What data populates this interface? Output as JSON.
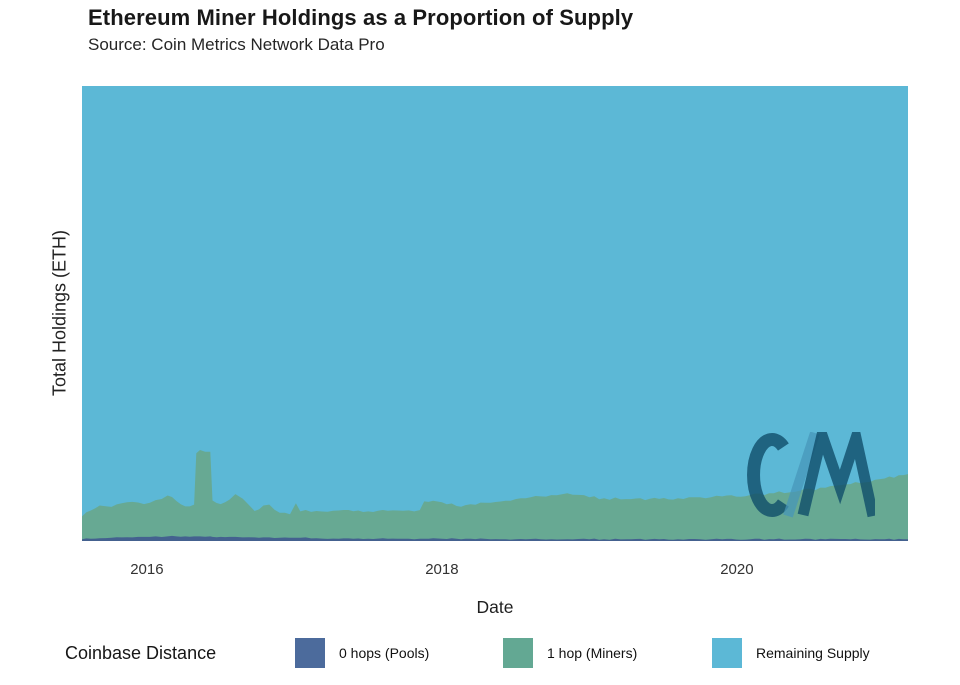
{
  "header": {
    "title": "Ethereum Miner Holdings as a Proportion of Supply",
    "source": "Source: Coin Metrics Network Data Pro"
  },
  "axes": {
    "x_label": "Date",
    "y_label": "Total Holdings (ETH)",
    "x_ticks": [
      "2016",
      "2018",
      "2020"
    ]
  },
  "legend": {
    "title": "Coinbase Distance",
    "items": [
      {
        "label": "0 hops (Pools)",
        "color": "#4c6b9c"
      },
      {
        "label": "1 hop (Miners)",
        "color": "#63a893"
      },
      {
        "label": "Remaining Supply",
        "color": "#5cb8d6"
      }
    ]
  },
  "watermark": {
    "name": "coin-metrics-logo"
  },
  "chart_data": {
    "type": "area",
    "stacked": true,
    "title": "Ethereum Miner Holdings as a Proportion of Supply",
    "subtitle": "Source: Coin Metrics Network Data Pro",
    "xlabel": "Date",
    "ylabel": "Total Holdings (ETH)",
    "x_domain": [
      2015.56,
      2021.16
    ],
    "x_tick_values": [
      2016,
      2018,
      2020
    ],
    "y_unit": "proportion of total ETH supply (y axis unlabeled; heights read as share of supply)",
    "ylim": [
      0,
      1
    ],
    "grid": false,
    "legend_position": "bottom",
    "series_order": [
      "0 hops (Pools)",
      "1 hop (Miners)",
      "Remaining Supply"
    ],
    "remaining_rule": "remaining = 1 - pools - miners",
    "colors": {
      "pools": "#44618f",
      "miners": "#67a993",
      "remaining": "#5cb8d6"
    },
    "points": [
      {
        "x": 2015.56,
        "pools": 0.004,
        "miners": 0.05
      },
      {
        "x": 2015.62,
        "pools": 0.005,
        "miners": 0.062
      },
      {
        "x": 2015.68,
        "pools": 0.006,
        "miners": 0.072
      },
      {
        "x": 2015.76,
        "pools": 0.007,
        "miners": 0.068
      },
      {
        "x": 2015.83,
        "pools": 0.008,
        "miners": 0.075
      },
      {
        "x": 2015.9,
        "pools": 0.008,
        "miners": 0.078
      },
      {
        "x": 2015.98,
        "pools": 0.009,
        "miners": 0.072
      },
      {
        "x": 2016.06,
        "pools": 0.01,
        "miners": 0.08
      },
      {
        "x": 2016.14,
        "pools": 0.01,
        "miners": 0.09
      },
      {
        "x": 2016.2,
        "pools": 0.01,
        "miners": 0.078
      },
      {
        "x": 2016.26,
        "pools": 0.01,
        "miners": 0.066
      },
      {
        "x": 2016.32,
        "pools": 0.01,
        "miners": 0.07
      },
      {
        "x": 2016.335,
        "pools": 0.01,
        "miners": 0.183
      },
      {
        "x": 2016.36,
        "pools": 0.01,
        "miners": 0.19
      },
      {
        "x": 2016.43,
        "pools": 0.01,
        "miners": 0.186
      },
      {
        "x": 2016.445,
        "pools": 0.009,
        "miners": 0.08
      },
      {
        "x": 2016.5,
        "pools": 0.009,
        "miners": 0.072
      },
      {
        "x": 2016.56,
        "pools": 0.009,
        "miners": 0.082
      },
      {
        "x": 2016.6,
        "pools": 0.009,
        "miners": 0.094
      },
      {
        "x": 2016.65,
        "pools": 0.008,
        "miners": 0.085
      },
      {
        "x": 2016.73,
        "pools": 0.008,
        "miners": 0.058
      },
      {
        "x": 2016.79,
        "pools": 0.008,
        "miners": 0.07
      },
      {
        "x": 2016.83,
        "pools": 0.008,
        "miners": 0.072
      },
      {
        "x": 2016.9,
        "pools": 0.007,
        "miners": 0.055
      },
      {
        "x": 2016.97,
        "pools": 0.007,
        "miners": 0.052
      },
      {
        "x": 2017.01,
        "pools": 0.007,
        "miners": 0.076
      },
      {
        "x": 2017.04,
        "pools": 0.007,
        "miners": 0.058
      },
      {
        "x": 2017.15,
        "pools": 0.006,
        "miners": 0.06
      },
      {
        "x": 2017.3,
        "pools": 0.005,
        "miners": 0.062
      },
      {
        "x": 2017.5,
        "pools": 0.005,
        "miners": 0.06
      },
      {
        "x": 2017.7,
        "pools": 0.005,
        "miners": 0.062
      },
      {
        "x": 2017.85,
        "pools": 0.005,
        "miners": 0.063
      },
      {
        "x": 2017.88,
        "pools": 0.005,
        "miners": 0.082
      },
      {
        "x": 2018.0,
        "pools": 0.005,
        "miners": 0.08
      },
      {
        "x": 2018.1,
        "pools": 0.005,
        "miners": 0.072
      },
      {
        "x": 2018.16,
        "pools": 0.005,
        "miners": 0.074
      },
      {
        "x": 2018.33,
        "pools": 0.004,
        "miners": 0.08
      },
      {
        "x": 2018.5,
        "pools": 0.004,
        "miners": 0.088
      },
      {
        "x": 2018.67,
        "pools": 0.004,
        "miners": 0.094
      },
      {
        "x": 2018.85,
        "pools": 0.004,
        "miners": 0.101
      },
      {
        "x": 2019.0,
        "pools": 0.004,
        "miners": 0.092
      },
      {
        "x": 2019.1,
        "pools": 0.004,
        "miners": 0.09
      },
      {
        "x": 2019.25,
        "pools": 0.004,
        "miners": 0.088
      },
      {
        "x": 2019.41,
        "pools": 0.004,
        "miners": 0.089
      },
      {
        "x": 2019.6,
        "pools": 0.004,
        "miners": 0.09
      },
      {
        "x": 2019.75,
        "pools": 0.004,
        "miners": 0.092
      },
      {
        "x": 2019.9,
        "pools": 0.004,
        "miners": 0.094
      },
      {
        "x": 2020.09,
        "pools": 0.004,
        "miners": 0.097
      },
      {
        "x": 2020.25,
        "pools": 0.004,
        "miners": 0.101
      },
      {
        "x": 2020.43,
        "pools": 0.004,
        "miners": 0.107
      },
      {
        "x": 2020.6,
        "pools": 0.004,
        "miners": 0.113
      },
      {
        "x": 2020.77,
        "pools": 0.004,
        "miners": 0.121
      },
      {
        "x": 2020.97,
        "pools": 0.004,
        "miners": 0.132
      },
      {
        "x": 2021.16,
        "pools": 0.004,
        "miners": 0.143
      }
    ]
  }
}
